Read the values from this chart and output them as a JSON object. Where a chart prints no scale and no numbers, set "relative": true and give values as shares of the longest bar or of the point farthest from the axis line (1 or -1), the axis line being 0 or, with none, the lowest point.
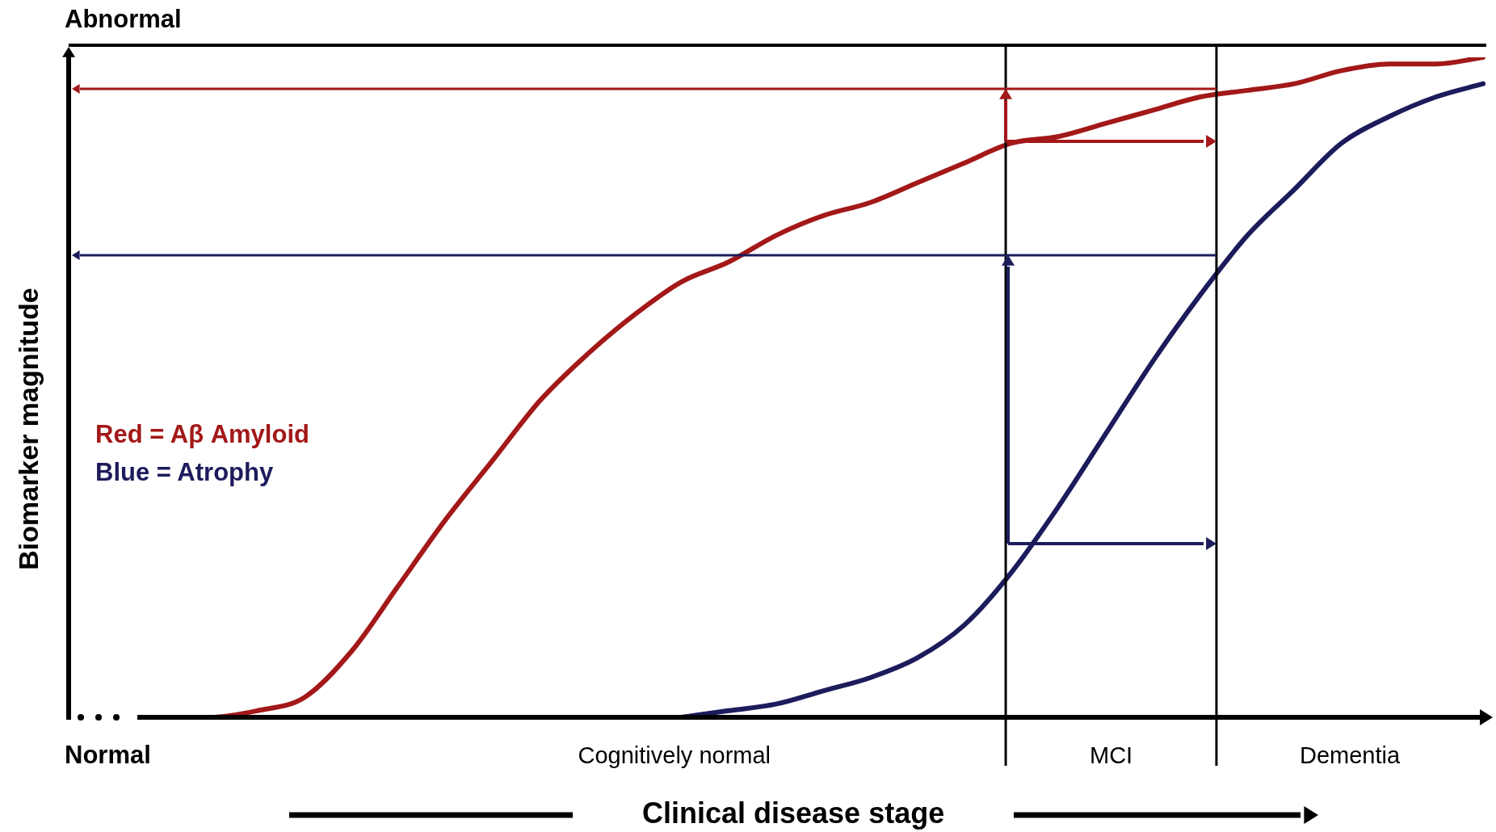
{
  "chart_data": {
    "type": "line",
    "relative": true,
    "xlabel": "Clinical disease stage",
    "ylabel": "Biomarker magnitude",
    "legend": false,
    "marker": "none",
    "categories": [
      null,
      null,
      null,
      null,
      null,
      null,
      null,
      null,
      null,
      null,
      null,
      null,
      null,
      null,
      null,
      null,
      null,
      null,
      null,
      null,
      null,
      null,
      null,
      null,
      null,
      null,
      null,
      null,
      null,
      null,
      null
    ],
    "annotations": [
      "Abnormal",
      "Normal",
      "Cognitively normal",
      "MCI",
      "Dementia",
      "Red = Aβ Amyloid",
      "Blue = Atrophy"
    ],
    "series": [
      {
        "color": "#a31818",
        "values": [
          null,
          null,
          0.0,
          0.0,
          0.01,
          0.03,
          0.1,
          0.2,
          0.3,
          0.39,
          0.48,
          0.55,
          0.61,
          0.66,
          0.69,
          0.73,
          0.76,
          0.78,
          0.81,
          0.84,
          0.87,
          0.88,
          0.9,
          0.92,
          0.94,
          0.95,
          0.96,
          0.98,
          0.99,
          0.99,
          1
        ]
      },
      {
        "color": "#1c1c5c",
        "values": [
          null,
          null,
          null,
          null,
          null,
          null,
          null,
          null,
          null,
          null,
          null,
          null,
          null,
          0.0,
          0.01,
          0.02,
          0.04,
          0.06,
          0.09,
          0.14,
          0.22,
          0.32,
          0.43,
          0.54,
          0.64,
          0.73,
          0.8,
          0.87,
          0.91,
          0.94,
          0.96
        ]
      }
    ]
  }
}
